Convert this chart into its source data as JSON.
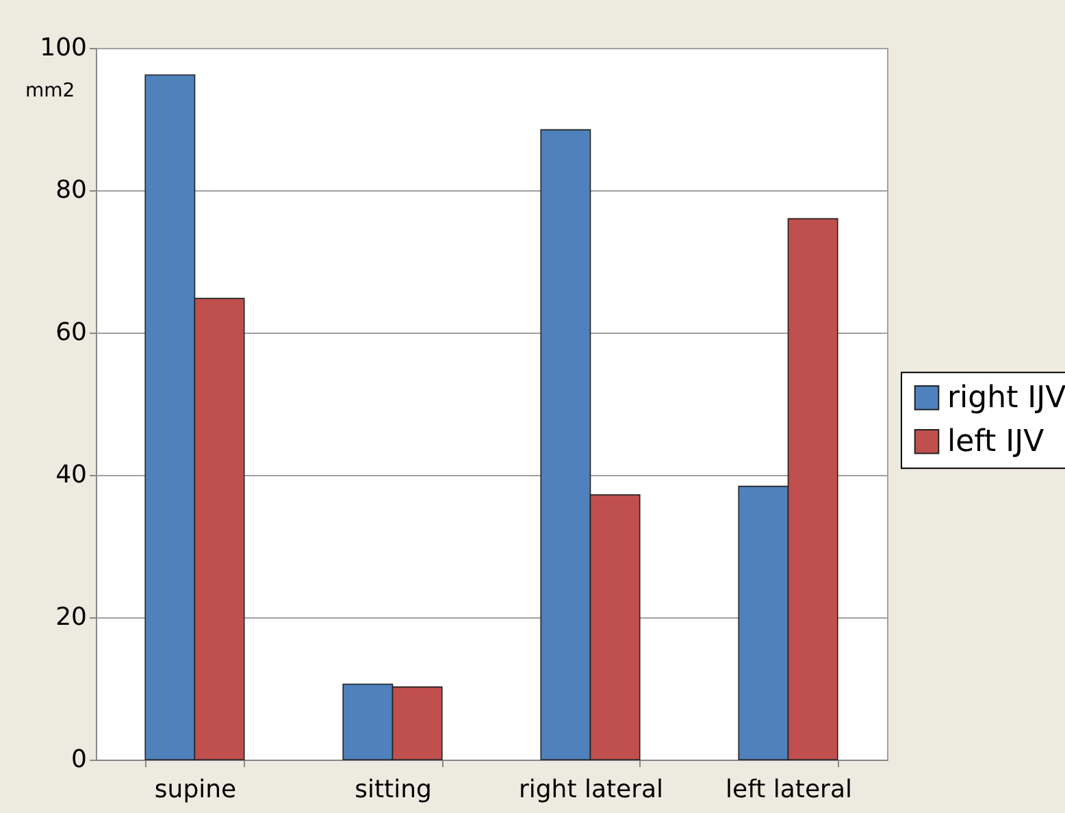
{
  "chart_data": {
    "type": "bar",
    "ylabel": "mm2",
    "categories": [
      "supine",
      "sitting",
      "right lateral",
      "left lateral"
    ],
    "series": [
      {
        "name": "right IJV",
        "color": "#4f81bd",
        "values": [
          96.2,
          10.6,
          88.5,
          38.4
        ]
      },
      {
        "name": "left IJV",
        "color": "#c0504d",
        "values": [
          64.8,
          10.2,
          37.2,
          76.0
        ]
      }
    ],
    "ylim": [
      0,
      100
    ],
    "yticks": [
      0,
      20,
      40,
      60,
      80,
      100
    ],
    "grid": "y",
    "legend": "right"
  }
}
